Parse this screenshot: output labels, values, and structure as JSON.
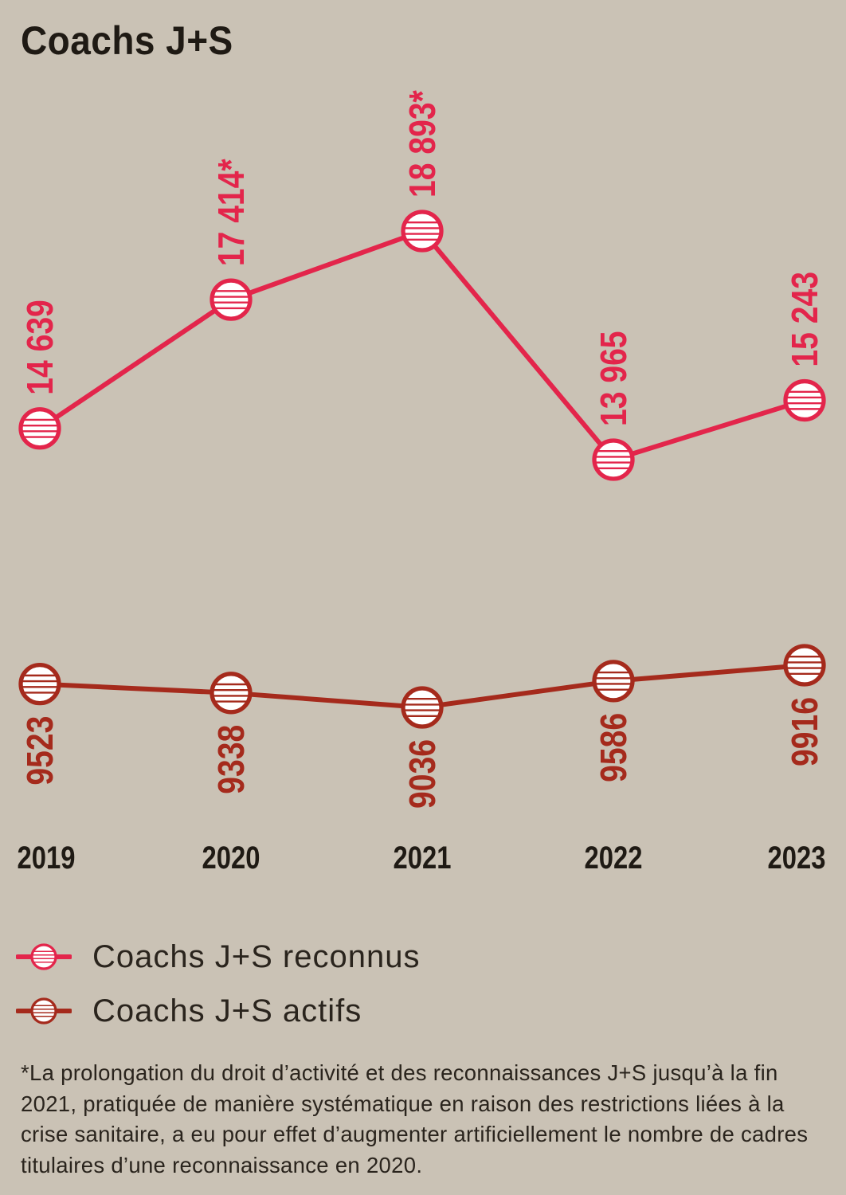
{
  "title": "Coachs J+S",
  "chart_data": {
    "type": "line",
    "title": "Coachs J+S",
    "categories": [
      "2019",
      "2020",
      "2021",
      "2022",
      "2023"
    ],
    "series": [
      {
        "name": "Coachs J+S reconnus",
        "color": "#e3254b",
        "values": [
          14639,
          17414,
          18893,
          13965,
          15243
        ],
        "labels": [
          "14 639",
          "17 414*",
          "18 893*",
          "13 965",
          "15 243"
        ],
        "label_position": "above"
      },
      {
        "name": "Coachs J+S actifs",
        "color": "#a52a1c",
        "values": [
          9523,
          9338,
          9036,
          9586,
          9916
        ],
        "labels": [
          "9523",
          "9338",
          "9036",
          "9586",
          "9916"
        ],
        "label_position": "below"
      }
    ],
    "xlabel": "",
    "ylabel": "",
    "grid": false,
    "legend_position": "bottom-left"
  },
  "legend": [
    "Coachs J+S reconnus",
    "Coachs J+S actifs"
  ],
  "footnote": "*La prolongation du droit d’activité et des reconnaissances J+S jusqu’à la fin 2021, pratiquée de manière systématique en raison des restrictions liées à la crise sanitaire, a eu pour effet d’augmenter artificiellement le nombre de cadres titulaires d’une reconnaissance en 2020."
}
